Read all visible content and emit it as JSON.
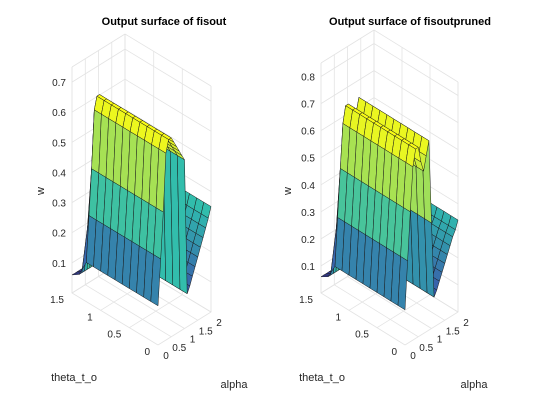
{
  "chart_data": [
    {
      "type": "surface3d",
      "title": "Output surface of fisout",
      "xlabel": "alpha",
      "ylabel": "theta_t_o",
      "zlabel": "w",
      "xticks": [
        "0",
        "0.5",
        "1",
        "1.5",
        "2"
      ],
      "yticks": [
        "0",
        "0.5",
        "1",
        "1.5"
      ],
      "zticks": [
        "0.1",
        "0.2",
        "0.3",
        "0.4",
        "0.5",
        "0.6",
        "0.7"
      ],
      "xlim": [
        0,
        2
      ],
      "ylim": [
        0,
        1.5
      ],
      "zlim": [
        0,
        0.75
      ],
      "alpha_profile": [
        [
          0.0,
          0.13
        ],
        [
          0.2,
          0.43
        ],
        [
          0.3,
          0.62
        ],
        [
          0.4,
          0.66
        ],
        [
          0.5,
          0.66
        ],
        [
          0.6,
          0.64
        ],
        [
          0.7,
          0.62
        ],
        [
          0.8,
          0.6
        ],
        [
          0.9,
          0.58
        ],
        [
          1.0,
          0.56
        ],
        [
          1.05,
          0.1
        ],
        [
          1.2,
          0.13
        ],
        [
          1.35,
          0.17
        ],
        [
          1.5,
          0.21
        ],
        [
          1.65,
          0.25
        ],
        [
          1.8,
          0.29
        ],
        [
          1.95,
          0.33
        ],
        [
          2.0,
          0.35
        ]
      ],
      "theta_profile": [
        [
          0.0,
          0.55
        ],
        [
          1.25,
          0.55
        ],
        [
          1.28,
          0.1
        ],
        [
          1.4,
          0.07
        ],
        [
          1.5,
          0.06
        ]
      ],
      "colors": {
        "low": "#3e26a8",
        "mid": "#2fbcae",
        "high": "#f9fb15"
      },
      "grid": true
    },
    {
      "type": "surface3d",
      "title": "Output surface of fisoutpruned",
      "xlabel": "alpha",
      "ylabel": "theta_t_o",
      "zlabel": "w",
      "xticks": [
        "0",
        "0.5",
        "1",
        "1.5",
        "2"
      ],
      "yticks": [
        "0",
        "0.5",
        "1",
        "1.5"
      ],
      "zticks": [
        "0.1",
        "0.2",
        "0.3",
        "0.4",
        "0.5",
        "0.6",
        "0.7",
        "0.8"
      ],
      "xlim": [
        0,
        2
      ],
      "ylim": [
        0,
        1.5
      ],
      "zlim": [
        0,
        0.85
      ],
      "alpha_profile": [
        [
          0.0,
          0.13
        ],
        [
          0.2,
          0.48
        ],
        [
          0.3,
          0.64
        ],
        [
          0.4,
          0.7
        ],
        [
          0.5,
          0.7
        ],
        [
          0.6,
          0.64
        ],
        [
          0.7,
          0.6
        ],
        [
          0.8,
          0.65
        ],
        [
          0.9,
          0.7
        ],
        [
          0.95,
          0.68
        ],
        [
          1.05,
          0.1
        ],
        [
          1.2,
          0.13
        ],
        [
          1.35,
          0.17
        ],
        [
          1.5,
          0.21
        ],
        [
          1.65,
          0.25
        ],
        [
          1.8,
          0.29
        ],
        [
          1.95,
          0.32
        ],
        [
          2.0,
          0.34
        ]
      ],
      "theta_profile": [
        [
          0.0,
          0.55
        ],
        [
          1.25,
          0.55
        ],
        [
          1.28,
          0.1
        ],
        [
          1.4,
          0.07
        ],
        [
          1.5,
          0.06
        ]
      ],
      "colors": {
        "low": "#3e26a8",
        "mid": "#2fbcae",
        "high": "#f9fb15"
      },
      "grid": true
    }
  ]
}
